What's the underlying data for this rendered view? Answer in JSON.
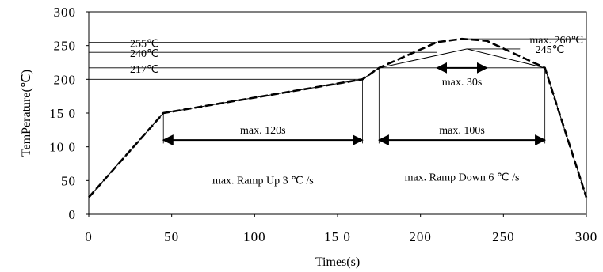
{
  "chart_data": {
    "type": "line",
    "xlabel": "Times(s)",
    "ylabel": "TemPerature(℃)",
    "xlim": [
      0,
      300
    ],
    "ylim": [
      0,
      300
    ],
    "x_ticks": [
      0,
      50,
      100,
      150,
      200,
      250,
      300
    ],
    "x_tick_labels": [
      "0",
      "50",
      "100",
      "15 0",
      "200",
      "250",
      "300"
    ],
    "y_ticks": [
      0,
      50,
      100,
      150,
      200,
      250,
      300
    ],
    "y_tick_labels": [
      "0",
      "50",
      "10 0",
      "15 0",
      "200",
      "250",
      "300"
    ],
    "series": [
      {
        "style": "dashed",
        "x": [
          0,
          45,
          165,
          175,
          210,
          225,
          240,
          275,
          300
        ],
        "y": [
          25,
          150,
          200,
          217,
          255,
          260,
          257,
          217,
          25
        ]
      },
      {
        "style": "solid",
        "x": [
          0,
          45,
          165,
          175,
          228,
          275,
          300
        ],
        "y": [
          25,
          150,
          200,
          217,
          245,
          217,
          25
        ]
      }
    ],
    "hlines": [
      {
        "y": 255,
        "x_end": 210,
        "label": "255℃"
      },
      {
        "y": 240,
        "x_end": 210,
        "label": "240℃"
      },
      {
        "y": 217,
        "x_end": 275,
        "label": "217℃"
      },
      {
        "y": 200,
        "x_end": 165,
        "label": ""
      },
      {
        "y": 260,
        "x_start": 225,
        "x_end": 300,
        "label": "max. 260℃"
      },
      {
        "y": 245,
        "x_start": 228,
        "x_end": 260,
        "label": "245℃"
      }
    ],
    "vlines": [
      {
        "x": 45,
        "y_from": 150,
        "y_to": 105
      },
      {
        "x": 165,
        "y_from": 200,
        "y_to": 105
      },
      {
        "x": 175,
        "y_from": 217,
        "y_to": 105
      },
      {
        "x": 275,
        "y_from": 217,
        "y_to": 105
      },
      {
        "x": 210,
        "y_from": 240,
        "y_to": 195
      },
      {
        "x": 240,
        "y_from": 240,
        "y_to": 195
      }
    ],
    "spans": [
      {
        "x1": 45,
        "x2": 165,
        "y": 110,
        "label": "max. 120s"
      },
      {
        "x1": 175,
        "x2": 275,
        "y": 110,
        "label": "max. 100s"
      },
      {
        "x1": 210,
        "x2": 240,
        "y": 217,
        "label": "max. 30s"
      }
    ],
    "annotations": [
      {
        "text": "max. Ramp Up 3 ℃ /s",
        "x": 105,
        "y": 45
      },
      {
        "text": "max. Ramp Down 6 ℃ /s",
        "x": 225,
        "y": 50
      }
    ]
  }
}
